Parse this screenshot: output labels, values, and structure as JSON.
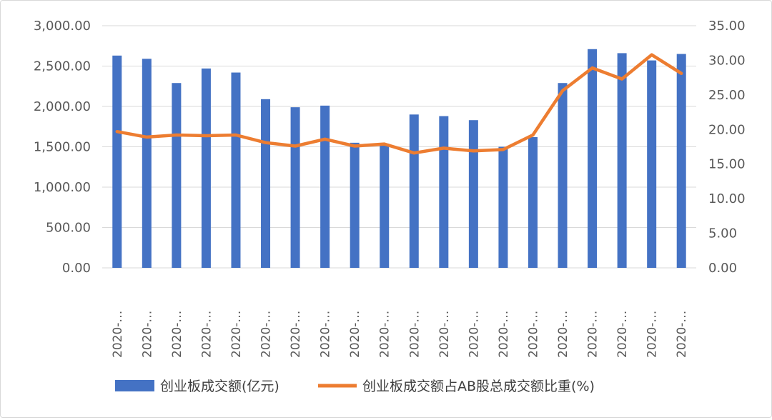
{
  "chart_data": {
    "type": "bar",
    "title": "",
    "categories": [
      "2020-…",
      "2020-…",
      "2020-…",
      "2020-…",
      "2020-…",
      "2020-…",
      "2020-…",
      "2020-…",
      "2020-…",
      "2020-…",
      "2020-…",
      "2020-…",
      "2020-…",
      "2020-…",
      "2020-…",
      "2020-…",
      "2020-…",
      "2020-…",
      "2020-…",
      "2020-…"
    ],
    "series": [
      {
        "name": "创业板成交额(亿元)",
        "type": "bar",
        "axis": "left",
        "color": "#4472C4",
        "values": [
          2630,
          2590,
          2290,
          2470,
          2420,
          2090,
          1990,
          2010,
          1550,
          1540,
          1900,
          1880,
          1830,
          1500,
          1620,
          2290,
          2710,
          2660,
          2570,
          2650
        ]
      },
      {
        "name": "创业板成交额占AB股总成交额比重(%)",
        "type": "line",
        "axis": "right",
        "color": "#ED7D31",
        "values": [
          19.7,
          18.9,
          19.2,
          19.1,
          19.2,
          18.1,
          17.6,
          18.6,
          17.6,
          17.9,
          16.6,
          17.3,
          16.9,
          17.1,
          19.2,
          25.6,
          28.9,
          27.3,
          30.8,
          28.1
        ]
      }
    ],
    "y_left": {
      "min": 0,
      "max": 3000,
      "step": 500,
      "tick_labels": [
        "0.00",
        "500.00",
        "1,000.00",
        "1,500.00",
        "2,000.00",
        "2,500.00",
        "3,000.00"
      ]
    },
    "y_right": {
      "min": 0,
      "max": 35,
      "step": 5,
      "tick_labels": [
        "0.00",
        "5.00",
        "10.00",
        "15.00",
        "20.00",
        "25.00",
        "30.00",
        "35.00"
      ]
    },
    "grid": true,
    "legend": "bottom"
  }
}
